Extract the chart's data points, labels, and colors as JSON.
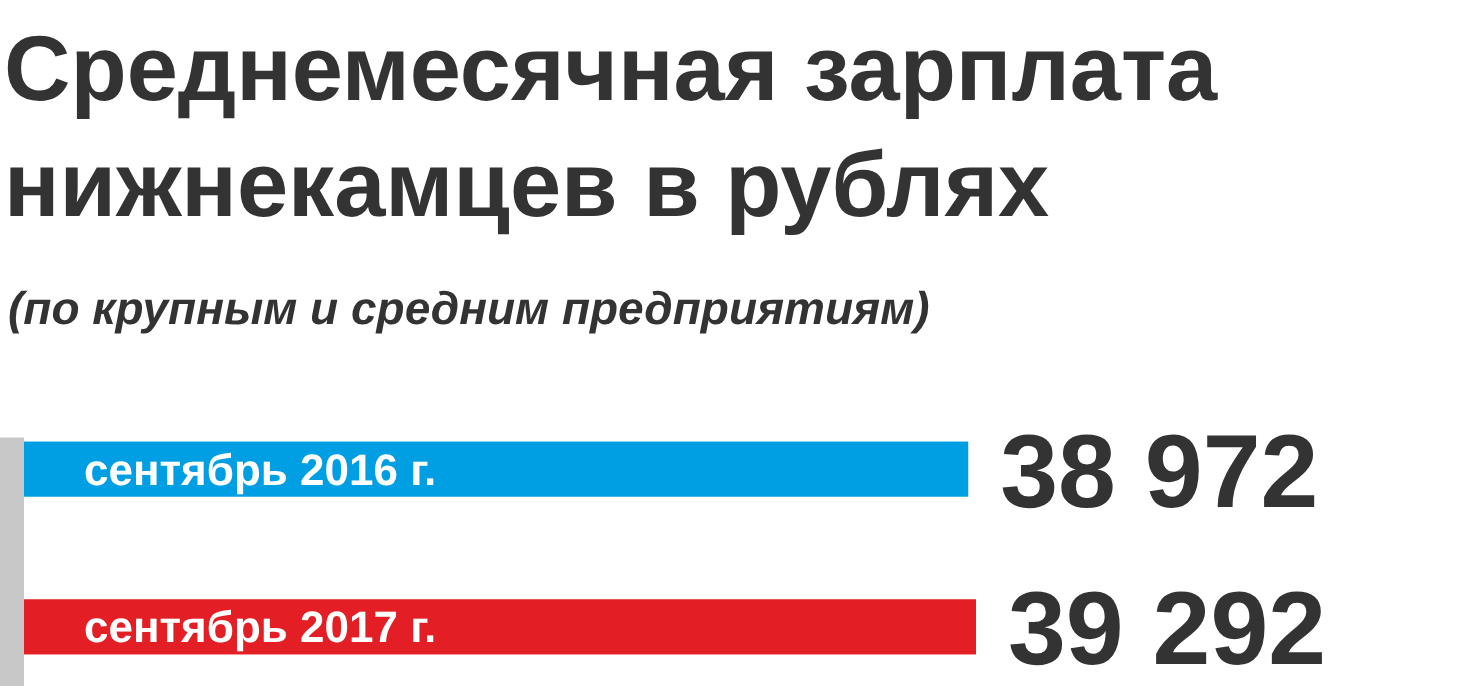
{
  "chart_data": {
    "type": "bar",
    "orientation": "horizontal",
    "title": "Среднемесячная зарплата нижнекамцев в рублях",
    "subtitle": "(по крупным и средним предприятиям)",
    "categories": [
      "сентябрь 2016 г.",
      "сентябрь 2017 г."
    ],
    "values": [
      38972,
      39292
    ],
    "colors": [
      "#009fe3",
      "#e31e24"
    ],
    "value_labels": [
      "38 972",
      "39 292"
    ]
  }
}
